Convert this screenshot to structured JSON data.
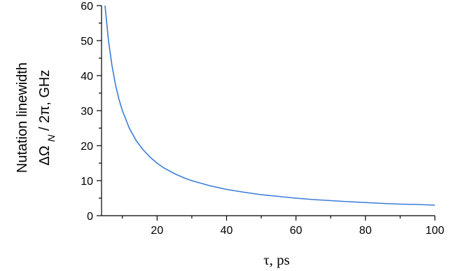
{
  "chart_data": {
    "type": "line",
    "title": "",
    "xlabel": "τ, ps",
    "ylabel_line1": "Nutation linewidth",
    "ylabel_line2": "ΔΩ_N / 2π, GHz",
    "xlim": [
      4,
      100
    ],
    "ylim": [
      0,
      60
    ],
    "grid": false,
    "x_ticks": [
      20,
      40,
      60,
      80,
      100
    ],
    "y_ticks": [
      0,
      10,
      20,
      30,
      40,
      50,
      60
    ],
    "series": [
      {
        "color": "#3b7dd8",
        "x": [
          5,
          6,
          7,
          8,
          9,
          10,
          12,
          14,
          16,
          18,
          20,
          22,
          25,
          28,
          30,
          35,
          40,
          45,
          50,
          55,
          60,
          65,
          70,
          75,
          80,
          85,
          90,
          95,
          100
        ],
        "y": [
          60,
          50,
          42.9,
          37.5,
          33.3,
          30,
          25,
          21.4,
          18.8,
          16.7,
          15,
          13.6,
          12,
          10.7,
          10,
          8.6,
          7.5,
          6.7,
          6,
          5.5,
          5,
          4.6,
          4.3,
          4,
          3.75,
          3.5,
          3.3,
          3.2,
          3
        ]
      }
    ]
  }
}
